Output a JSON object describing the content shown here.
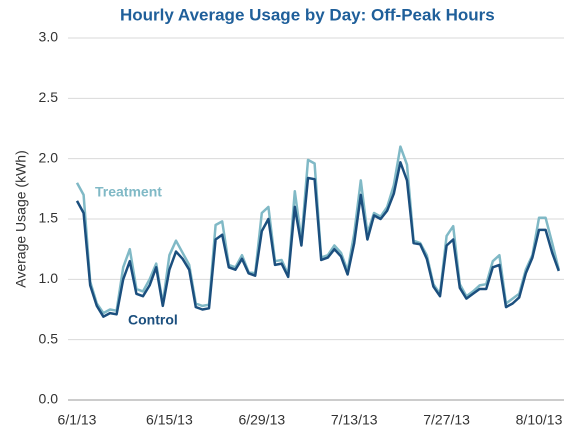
{
  "chart_data": {
    "type": "line",
    "title": "Hourly Average Usage by Day: Off-Peak Hours",
    "y_label": "Average Usage (kWh)",
    "categories": [
      "6/1/13",
      null,
      null,
      null,
      null,
      null,
      null,
      null,
      null,
      null,
      null,
      null,
      null,
      null,
      "6/15/13",
      null,
      null,
      null,
      null,
      null,
      null,
      null,
      null,
      null,
      null,
      null,
      null,
      null,
      "6/29/13",
      null,
      null,
      null,
      null,
      null,
      null,
      null,
      null,
      null,
      null,
      null,
      null,
      null,
      "7/13/13",
      null,
      null,
      null,
      null,
      null,
      null,
      null,
      null,
      null,
      null,
      null,
      null,
      null,
      "7/27/13",
      null,
      null,
      null,
      null,
      null,
      null,
      null,
      null,
      null,
      null,
      null,
      null,
      null,
      "8/10/13",
      null,
      null,
      null
    ],
    "series": [
      {
        "name": "Treatment",
        "color": "#80b9c6",
        "values": [
          1.8,
          1.7,
          0.98,
          0.8,
          0.72,
          0.75,
          0.74,
          1.1,
          1.25,
          0.92,
          0.9,
          1.0,
          1.13,
          0.8,
          1.2,
          1.32,
          1.22,
          1.12,
          0.8,
          0.78,
          0.79,
          1.45,
          1.48,
          1.12,
          1.1,
          1.2,
          1.06,
          1.05,
          1.55,
          1.6,
          1.15,
          1.16,
          1.04,
          1.73,
          1.32,
          1.99,
          1.96,
          1.18,
          1.2,
          1.28,
          1.22,
          1.07,
          1.38,
          1.82,
          1.38,
          1.55,
          1.52,
          1.6,
          1.78,
          2.1,
          1.95,
          1.32,
          1.3,
          1.2,
          0.96,
          0.88,
          1.36,
          1.44,
          0.96,
          0.86,
          0.9,
          0.95,
          0.96,
          1.15,
          1.2,
          0.8,
          0.84,
          0.88,
          1.08,
          1.2,
          1.51,
          1.51,
          1.3,
          1.08
        ]
      },
      {
        "name": "Control",
        "color": "#1b4f7e",
        "values": [
          1.65,
          1.55,
          0.95,
          0.78,
          0.69,
          0.72,
          0.71,
          1.0,
          1.15,
          0.88,
          0.86,
          0.95,
          1.1,
          0.78,
          1.08,
          1.23,
          1.17,
          1.08,
          0.77,
          0.75,
          0.76,
          1.33,
          1.37,
          1.1,
          1.08,
          1.17,
          1.05,
          1.03,
          1.4,
          1.5,
          1.12,
          1.13,
          1.02,
          1.6,
          1.28,
          1.84,
          1.83,
          1.16,
          1.18,
          1.25,
          1.19,
          1.04,
          1.3,
          1.7,
          1.33,
          1.53,
          1.5,
          1.57,
          1.71,
          1.97,
          1.82,
          1.3,
          1.29,
          1.17,
          0.94,
          0.86,
          1.28,
          1.33,
          0.93,
          0.84,
          0.88,
          0.92,
          0.92,
          1.1,
          1.12,
          0.77,
          0.8,
          0.85,
          1.05,
          1.18,
          1.41,
          1.41,
          1.22,
          1.07
        ]
      }
    ],
    "ylim": [
      0,
      3
    ],
    "yticks": [
      {
        "value": 0,
        "label": "0.0"
      },
      {
        "value": 0.5,
        "label": "0.5"
      },
      {
        "value": 1,
        "label": "1.0"
      },
      {
        "value": 1.5,
        "label": "1.5"
      },
      {
        "value": 2,
        "label": "2.0"
      },
      {
        "value": 2.5,
        "label": "2.5"
      },
      {
        "value": 3,
        "label": "3.0"
      }
    ],
    "grid": true
  }
}
